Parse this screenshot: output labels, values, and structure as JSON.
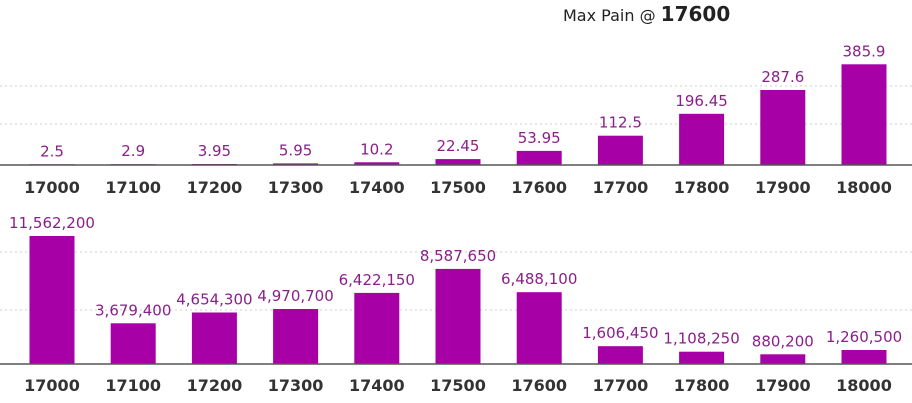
{
  "header": {
    "max_pain_label": "Max Pain @",
    "max_pain_value": "17600"
  },
  "colors": {
    "bar": "#a600a6",
    "data_label": "#8a1f8a"
  },
  "chart_data": [
    {
      "type": "bar",
      "categories": [
        "17000",
        "17100",
        "17200",
        "17300",
        "17400",
        "17500",
        "17600",
        "17700",
        "17800",
        "17900",
        "18000"
      ],
      "values": [
        2.5,
        2.9,
        3.95,
        5.95,
        10.2,
        22.45,
        53.95,
        112.5,
        196.45,
        287.6,
        385.9
      ],
      "value_labels": [
        "2.5",
        "2.9",
        "3.95",
        "5.95",
        "10.2",
        "22.45",
        "53.95",
        "112.5",
        "196.45",
        "287.6",
        "385.9"
      ],
      "ylim": [
        0,
        460
      ],
      "grid": true
    },
    {
      "type": "bar",
      "categories": [
        "17000",
        "17100",
        "17200",
        "17300",
        "17400",
        "17500",
        "17600",
        "17700",
        "17800",
        "17900",
        "18000"
      ],
      "values": [
        11562200,
        3679400,
        4654300,
        4970700,
        6422150,
        8587650,
        6488100,
        1606450,
        1108250,
        880200,
        1260500
      ],
      "value_labels": [
        "11,562,200",
        "3,679,400",
        "4,654,300",
        "4,970,700",
        "6,422,150",
        "8,587,650",
        "6,488,100",
        "1,606,450",
        "1,108,250",
        "880,200",
        "1,260,500"
      ],
      "ylim": [
        0,
        11562200
      ],
      "grid": true
    }
  ]
}
